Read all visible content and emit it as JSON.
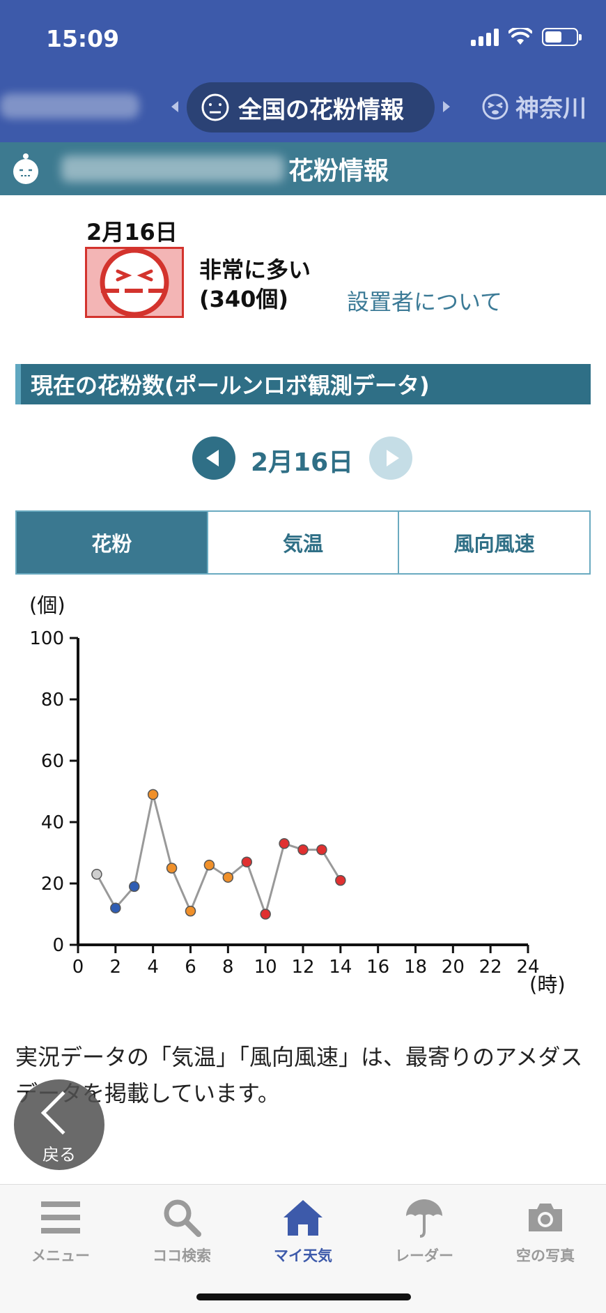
{
  "status_bar": {
    "time": "15:09"
  },
  "header": {
    "center_pill_label": "全国の花粉情報",
    "right_region_label": "神奈川"
  },
  "subheader": {
    "title_suffix": "花粉情報"
  },
  "forecast": {
    "date": "2月16日",
    "level_line1": "非常に多い",
    "level_line2": "(340個)",
    "installer_link": "設置者について"
  },
  "section_title": "現在の花粉数(ポールンロボ観測データ)",
  "date_nav": {
    "date": "2月16日"
  },
  "tabs": [
    {
      "label": "花粉",
      "active": true
    },
    {
      "label": "気温",
      "active": false
    },
    {
      "label": "風向風速",
      "active": false
    }
  ],
  "chart_data": {
    "type": "line",
    "ylabel": "(個)",
    "xlabel": "(時)",
    "xlim": [
      0,
      24
    ],
    "ylim": [
      0,
      100
    ],
    "x_ticks": [
      0,
      2,
      4,
      6,
      8,
      10,
      12,
      14,
      16,
      18,
      20,
      22,
      24
    ],
    "y_ticks": [
      0,
      20,
      40,
      60,
      80,
      100
    ],
    "grid": false,
    "series": [
      {
        "x": [
          1,
          2,
          3,
          4,
          5,
          6,
          7,
          8,
          9,
          10,
          11,
          12,
          13,
          14
        ],
        "values": [
          23,
          12,
          19,
          49,
          25,
          11,
          26,
          22,
          27,
          10,
          33,
          31,
          31,
          21
        ],
        "point_colors": [
          "#cfcfcf",
          "#2f5db3",
          "#2f5db3",
          "#f0902a",
          "#f0902a",
          "#f0902a",
          "#f0902a",
          "#f0902a",
          "#e03030",
          "#e03030",
          "#e03030",
          "#e03030",
          "#e03030",
          "#e03030"
        ]
      }
    ],
    "line_color": "#999999"
  },
  "note": "実況データの「気温」「風向風速」は、最寄りのアメダスデータを掲載しています。",
  "back_button": {
    "label": "戻る"
  },
  "bottom_nav": [
    {
      "label": "メニュー",
      "icon": "menu-icon",
      "active": false
    },
    {
      "label": "ココ検索",
      "icon": "search-icon",
      "active": false
    },
    {
      "label": "マイ天気",
      "icon": "home-icon",
      "active": true
    },
    {
      "label": "レーダー",
      "icon": "umbrella-icon",
      "active": false
    },
    {
      "label": "空の写真",
      "icon": "camera-icon",
      "active": false
    }
  ],
  "colors": {
    "header_blue": "#3d5aaa",
    "teal": "#2f6f86",
    "active_tab": "#3a7890"
  }
}
